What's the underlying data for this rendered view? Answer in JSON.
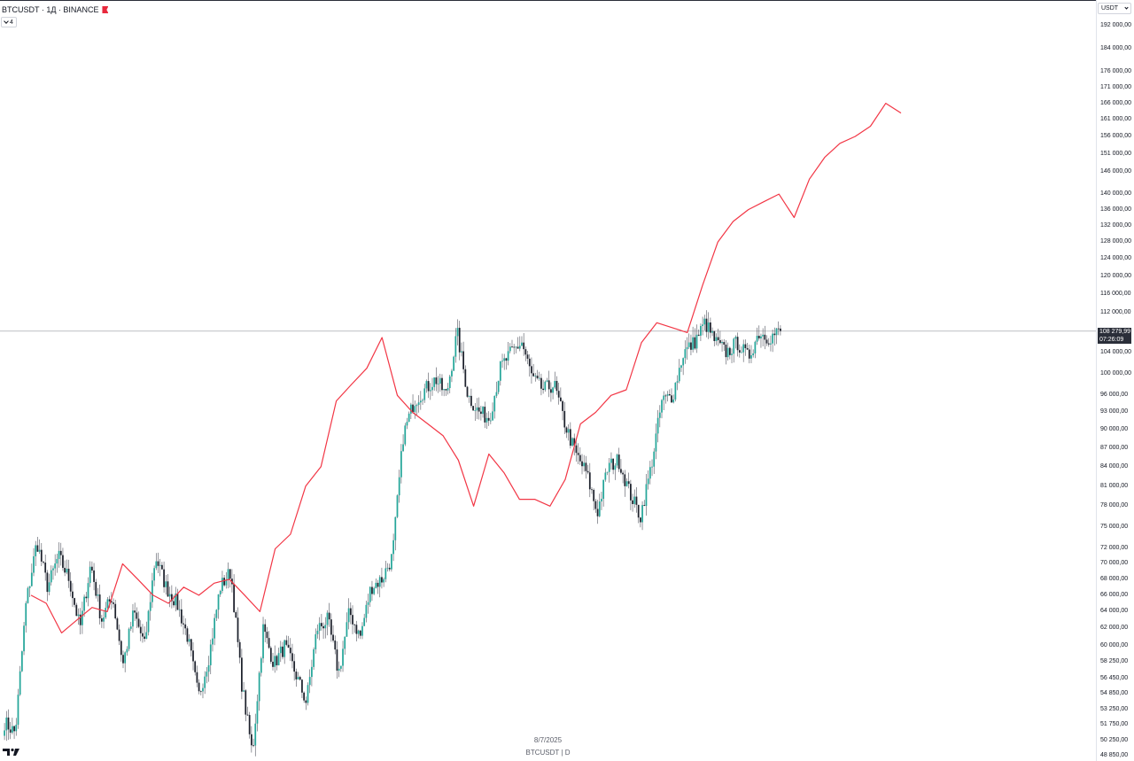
{
  "header": {
    "symbol_line": "BTCUSDT · 1Д · BINANCE",
    "indicator_count": "4"
  },
  "axis": {
    "currency_label": "USDT",
    "ticks": [
      "192 000,00",
      "184 000,00",
      "176 000,00",
      "171 000,00",
      "166 000,00",
      "161 000,00",
      "156 000,00",
      "151 000,00",
      "146 000,00",
      "140 000,00",
      "136 000,00",
      "132 000,00",
      "128 000,00",
      "124 000,00",
      "120 000,00",
      "116 000,00",
      "112 000,00",
      "104 000,00",
      "100 000,00",
      "96 000,00",
      "93 000,00",
      "90 000,00",
      "87 000,00",
      "84 000,00",
      "81 000,00",
      "78 000,00",
      "75 000,00",
      "72 000,00",
      "70 000,00",
      "68 000,00",
      "66 000,00",
      "64 000,00",
      "62 000,00",
      "60 000,00",
      "58 250,00",
      "56 450,00",
      "54 850,00",
      "53 250,00",
      "51 750,00",
      "50 250,00",
      "48 850,00"
    ],
    "current_price": "108 279,99",
    "countdown": "07:26:09"
  },
  "footer": {
    "date": "8/7/2025",
    "series_label": "BTCUSDT | D"
  },
  "chart_data": {
    "type": "line",
    "scale": "log",
    "ylim": [
      48850,
      192000
    ],
    "grid": false,
    "colors": {
      "up": "#26a69a",
      "down": "#1e222d",
      "overlay": "#f23645",
      "crosshair": "#9598a1"
    },
    "series": [
      {
        "values": [
          52000,
          51000,
          65000,
          73000,
          67000,
          71000,
          68000,
          62000,
          70000,
          63000,
          66000,
          58000,
          64000,
          60000,
          71000,
          67000,
          65000,
          61000,
          54500,
          59000,
          67000,
          69000,
          56000,
          49000,
          62000,
          58000,
          60000,
          57000,
          54000,
          62000,
          63000,
          57000,
          64000,
          61000,
          67000,
          68000,
          71000,
          89000,
          95000,
          97000,
          99000,
          96000,
          108000,
          96000,
          93000,
          92000,
          101000,
          104000,
          106000,
          99000,
          97000,
          98000,
          91000,
          86000,
          83000,
          77000,
          84000,
          85000,
          80000,
          76500,
          84000,
          95000,
          96000,
          104000,
          106000,
          110000,
          106000,
          104000,
          106000,
          103000,
          108000,
          107000,
          108300
        ]
      },
      {
        "values": [
          66000,
          65000,
          61500,
          63000,
          64500,
          64000,
          70000,
          68000,
          66000,
          65000,
          67000,
          66000,
          67500,
          68000,
          66000,
          64000,
          72000,
          74000,
          81000,
          84000,
          95000,
          98000,
          101000,
          107000,
          96000,
          93000,
          91000,
          89000,
          85000,
          78000,
          86000,
          83000,
          79000,
          79000,
          78000,
          82000,
          91000,
          93000,
          96000,
          97000,
          106000,
          110000,
          109000,
          108000,
          118000,
          128000,
          133000,
          136000,
          138000,
          140000,
          134000,
          144000,
          150000,
          154000,
          156000,
          159000,
          166000,
          163000
        ]
      }
    ]
  }
}
